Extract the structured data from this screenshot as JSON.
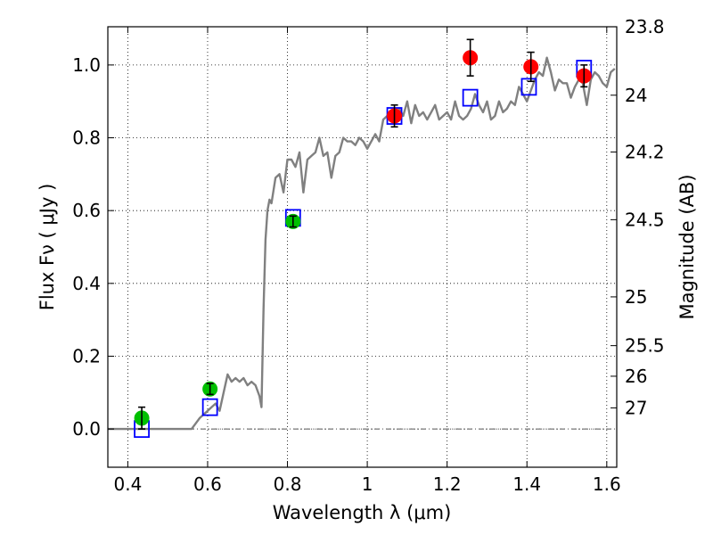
{
  "chart_data": {
    "type": "scatter",
    "title": "",
    "xlabel": "Wavelength  λ (μm)",
    "ylabel": "Flux  Fν  ( μJy )",
    "ylabel_right": "Magnitude (AB)",
    "xlim": [
      0.35,
      1.625
    ],
    "ylim": [
      -0.105,
      1.105
    ],
    "grid": true,
    "x_ticks": [
      {
        "value": 0.4,
        "label": "0.4"
      },
      {
        "value": 0.6,
        "label": "0.6"
      },
      {
        "value": 0.8,
        "label": "0.8"
      },
      {
        "value": 1.0,
        "label": "1"
      },
      {
        "value": 1.2,
        "label": "1.2"
      },
      {
        "value": 1.4,
        "label": "1.4"
      },
      {
        "value": 1.6,
        "label": "1.6"
      }
    ],
    "y_ticks": [
      {
        "value": 0.0,
        "label": "0.0"
      },
      {
        "value": 0.2,
        "label": "0.2"
      },
      {
        "value": 0.4,
        "label": "0.4"
      },
      {
        "value": 0.6,
        "label": "0.6"
      },
      {
        "value": 0.8,
        "label": "0.8"
      },
      {
        "value": 1.0,
        "label": "1.0"
      }
    ],
    "right_ticks": [
      {
        "flux": 1.105,
        "label": "23.8"
      },
      {
        "flux": 0.917,
        "label": "24"
      },
      {
        "flux": 0.761,
        "label": "24.2"
      },
      {
        "flux": 0.575,
        "label": "24.5"
      },
      {
        "flux": 0.363,
        "label": "25"
      },
      {
        "flux": 0.229,
        "label": "25.5"
      },
      {
        "flux": 0.145,
        "label": "26"
      },
      {
        "flux": 0.058,
        "label": "27"
      }
    ],
    "series": [
      {
        "name": "Model spectrum",
        "kind": "line",
        "color": "#808080",
        "x": [
          0.35,
          0.5,
          0.56,
          0.58,
          0.6,
          0.61,
          0.62,
          0.63,
          0.64,
          0.65,
          0.66,
          0.67,
          0.68,
          0.69,
          0.7,
          0.71,
          0.72,
          0.73,
          0.735,
          0.74,
          0.745,
          0.75,
          0.755,
          0.76,
          0.77,
          0.78,
          0.79,
          0.8,
          0.81,
          0.82,
          0.83,
          0.84,
          0.85,
          0.86,
          0.87,
          0.88,
          0.89,
          0.9,
          0.91,
          0.92,
          0.93,
          0.94,
          0.95,
          0.96,
          0.97,
          0.98,
          0.99,
          1.0,
          1.01,
          1.02,
          1.03,
          1.04,
          1.05,
          1.06,
          1.07,
          1.08,
          1.09,
          1.1,
          1.11,
          1.12,
          1.13,
          1.14,
          1.15,
          1.16,
          1.17,
          1.18,
          1.19,
          1.2,
          1.21,
          1.22,
          1.23,
          1.24,
          1.25,
          1.26,
          1.27,
          1.28,
          1.29,
          1.3,
          1.31,
          1.32,
          1.33,
          1.34,
          1.35,
          1.36,
          1.37,
          1.38,
          1.39,
          1.4,
          1.41,
          1.42,
          1.43,
          1.44,
          1.45,
          1.46,
          1.47,
          1.48,
          1.49,
          1.5,
          1.51,
          1.52,
          1.53,
          1.54,
          1.55,
          1.56,
          1.57,
          1.58,
          1.59,
          1.6,
          1.61,
          1.62
        ],
        "y": [
          0.0,
          0.0,
          0.0,
          0.03,
          0.05,
          0.06,
          0.07,
          0.05,
          0.1,
          0.15,
          0.13,
          0.14,
          0.13,
          0.14,
          0.12,
          0.13,
          0.12,
          0.09,
          0.06,
          0.33,
          0.52,
          0.6,
          0.63,
          0.62,
          0.69,
          0.7,
          0.65,
          0.74,
          0.74,
          0.72,
          0.76,
          0.65,
          0.74,
          0.75,
          0.76,
          0.8,
          0.75,
          0.76,
          0.69,
          0.75,
          0.76,
          0.8,
          0.79,
          0.79,
          0.78,
          0.8,
          0.79,
          0.77,
          0.79,
          0.81,
          0.79,
          0.85,
          0.86,
          0.85,
          0.84,
          0.88,
          0.86,
          0.9,
          0.84,
          0.89,
          0.86,
          0.87,
          0.85,
          0.87,
          0.89,
          0.85,
          0.86,
          0.87,
          0.85,
          0.9,
          0.86,
          0.85,
          0.86,
          0.88,
          0.92,
          0.89,
          0.87,
          0.9,
          0.85,
          0.86,
          0.9,
          0.87,
          0.88,
          0.9,
          0.89,
          0.94,
          0.92,
          0.9,
          0.93,
          0.96,
          0.98,
          0.97,
          1.02,
          0.98,
          0.93,
          0.96,
          0.95,
          0.95,
          0.91,
          0.94,
          0.96,
          0.95,
          0.89,
          0.96,
          0.98,
          0.97,
          0.95,
          0.94,
          0.98,
          0.99
        ]
      },
      {
        "name": "Green measurements",
        "kind": "marker",
        "marker": "circle",
        "color": "#00c000",
        "points": [
          {
            "x": 0.435,
            "y": 0.03,
            "err": 0.03
          },
          {
            "x": 0.606,
            "y": 0.11,
            "err": 0.015
          },
          {
            "x": 0.814,
            "y": 0.57,
            "err": 0.015
          }
        ]
      },
      {
        "name": "Red measurements",
        "kind": "marker",
        "marker": "circle",
        "color": "#ff0000",
        "points": [
          {
            "x": 1.068,
            "y": 0.86,
            "err": 0.03
          },
          {
            "x": 1.258,
            "y": 1.02,
            "err": 0.05
          },
          {
            "x": 1.41,
            "y": 0.995,
            "err": 0.04
          },
          {
            "x": 1.543,
            "y": 0.97,
            "err": 0.03
          }
        ]
      },
      {
        "name": "Model band fluxes",
        "kind": "marker",
        "marker": "open-square",
        "color": "#0000ff",
        "points": [
          {
            "x": 0.435,
            "y": 0.0
          },
          {
            "x": 0.606,
            "y": 0.06
          },
          {
            "x": 0.814,
            "y": 0.58
          },
          {
            "x": 1.068,
            "y": 0.86
          },
          {
            "x": 1.258,
            "y": 0.91
          },
          {
            "x": 1.405,
            "y": 0.94
          },
          {
            "x": 1.543,
            "y": 0.99
          }
        ]
      }
    ]
  }
}
